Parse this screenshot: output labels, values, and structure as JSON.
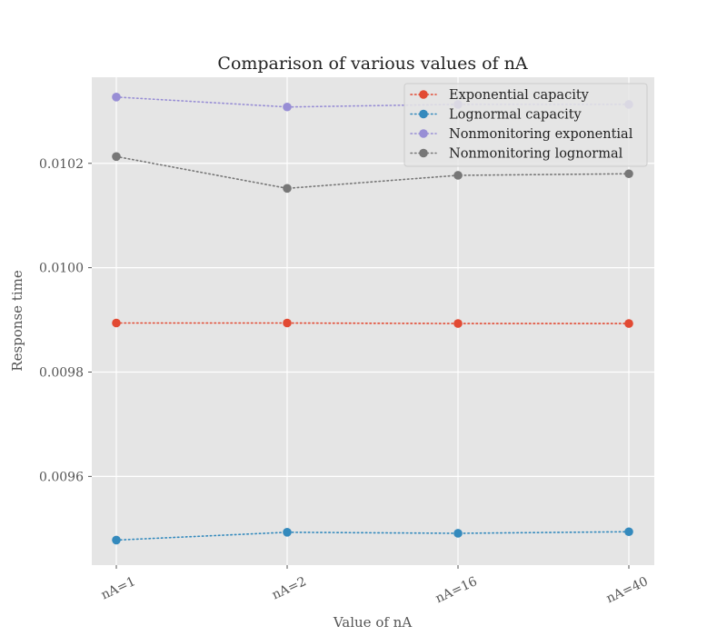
{
  "chart_data": {
    "type": "line",
    "title": "Comparison of various values of nA",
    "xlabel": "Value of nA",
    "ylabel": "Response time",
    "categories": [
      "nA=1",
      "nA=2",
      "nA=16",
      "nA=40"
    ],
    "ylim": [
      0.00943,
      0.010365
    ],
    "yticks": [
      0.0096,
      0.0098,
      0.01,
      0.0102
    ],
    "ytick_labels": [
      "0.0096",
      "0.0098",
      "0.0100",
      "0.0102"
    ],
    "grid": true,
    "legend_position": "top-right",
    "series": [
      {
        "name": "Exponential capacity",
        "color": "#E24A33",
        "values": [
          0.009894,
          0.009894,
          0.009893,
          0.009893
        ]
      },
      {
        "name": "Lognormal capacity",
        "color": "#348ABD",
        "values": [
          0.009478,
          0.009493,
          0.009491,
          0.009494
        ]
      },
      {
        "name": "Nonmonitoring exponential",
        "color": "#988ED5",
        "values": [
          0.010327,
          0.010308,
          0.010313,
          0.010313
        ]
      },
      {
        "name": "Nonmonitoring lognormal",
        "color": "#777777",
        "values": [
          0.010213,
          0.010152,
          0.010177,
          0.01018
        ]
      }
    ]
  }
}
